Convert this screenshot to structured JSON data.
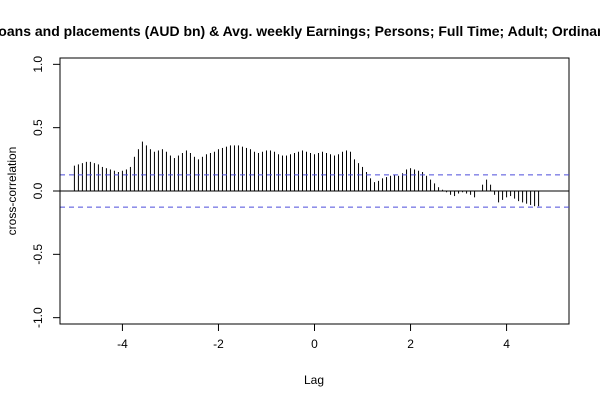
{
  "chart_data": {
    "type": "bar",
    "title": "Loans and placements (AUD bn) & Avg. weekly Earnings; Persons; Full Time; Adult; Ordinary",
    "xlabel": "Lag",
    "ylabel": "cross-correlation",
    "xlim": [
      -5.3,
      5.3
    ],
    "ylim": [
      -1.05,
      1.05
    ],
    "x_ticks": [
      -4,
      -2,
      0,
      2,
      4
    ],
    "y_ticks": [
      -1.0,
      -0.5,
      0.0,
      0.5,
      1.0
    ],
    "x_tick_labels": [
      "-4",
      "-2",
      "0",
      "2",
      "4"
    ],
    "y_tick_labels": [
      "-1.0",
      "-0.5",
      "0.0",
      "0.5",
      "1.0"
    ],
    "confidence_limit": 0.127,
    "lag_step": 0.0833333,
    "lag_start": -5.0,
    "values": [
      0.2,
      0.21,
      0.22,
      0.23,
      0.23,
      0.22,
      0.21,
      0.19,
      0.18,
      0.17,
      0.16,
      0.15,
      0.16,
      0.17,
      0.19,
      0.27,
      0.33,
      0.39,
      0.36,
      0.33,
      0.31,
      0.32,
      0.33,
      0.31,
      0.28,
      0.26,
      0.28,
      0.3,
      0.32,
      0.3,
      0.27,
      0.25,
      0.27,
      0.29,
      0.3,
      0.31,
      0.33,
      0.34,
      0.35,
      0.36,
      0.36,
      0.36,
      0.35,
      0.34,
      0.33,
      0.31,
      0.3,
      0.31,
      0.32,
      0.32,
      0.31,
      0.29,
      0.28,
      0.28,
      0.29,
      0.3,
      0.31,
      0.32,
      0.31,
      0.3,
      0.29,
      0.3,
      0.31,
      0.3,
      0.29,
      0.28,
      0.29,
      0.31,
      0.32,
      0.31,
      0.25,
      0.22,
      0.19,
      0.15,
      0.1,
      0.07,
      0.08,
      0.1,
      0.11,
      0.12,
      0.13,
      0.12,
      0.14,
      0.17,
      0.18,
      0.17,
      0.16,
      0.15,
      0.12,
      0.09,
      0.06,
      0.03,
      0.01,
      -0.01,
      -0.03,
      -0.04,
      -0.02,
      -0.01,
      -0.02,
      -0.03,
      -0.05,
      0.0,
      0.05,
      0.09,
      0.05,
      -0.03,
      -0.09,
      -0.07,
      -0.05,
      -0.04,
      -0.06,
      -0.08,
      -0.09,
      -0.1,
      -0.11,
      -0.12,
      -0.12
    ]
  }
}
